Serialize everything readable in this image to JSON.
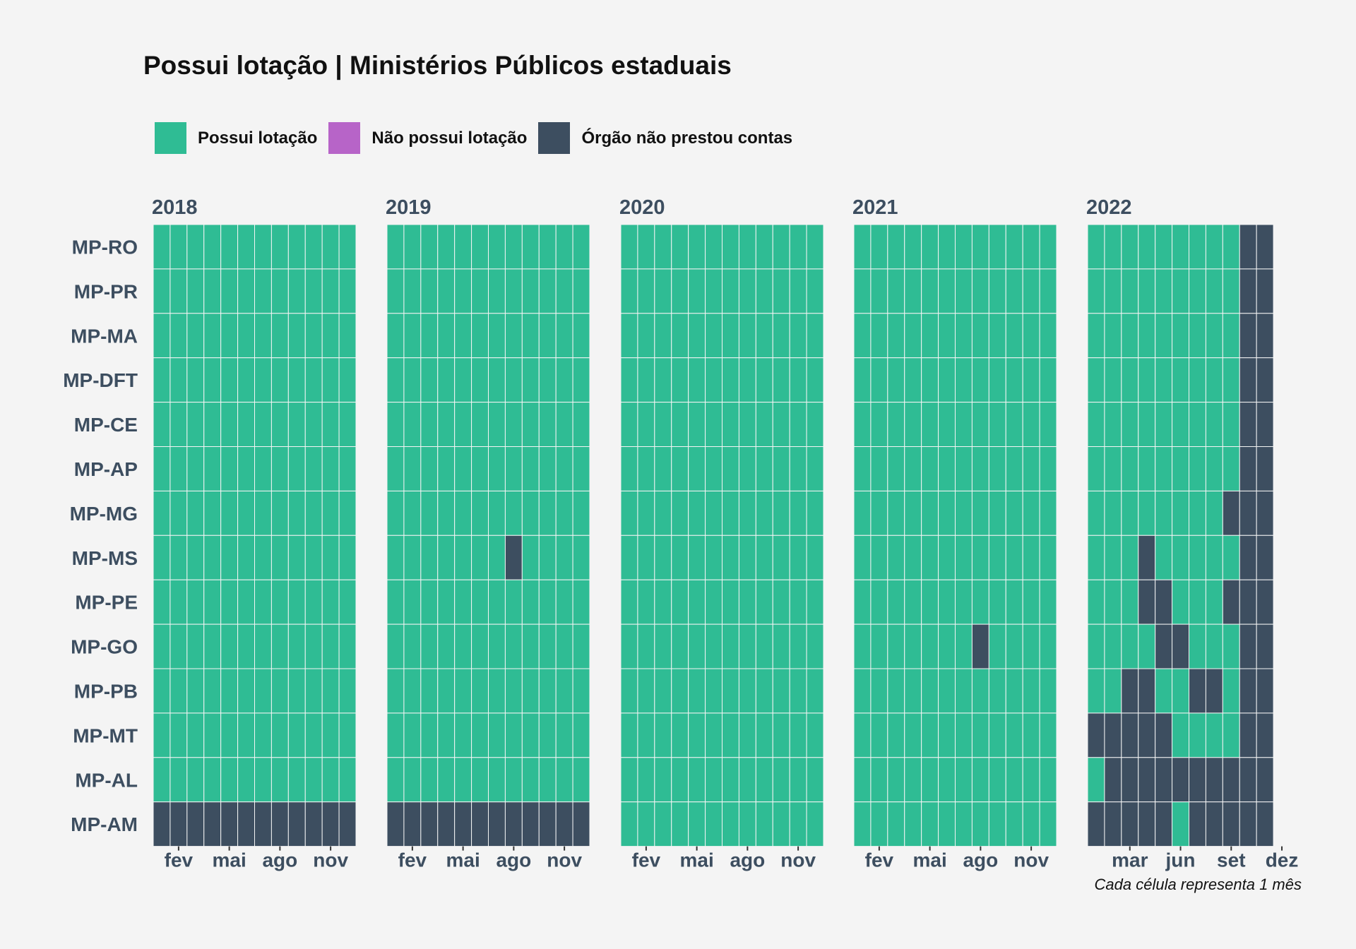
{
  "colors": {
    "background": "#f4f4f4",
    "possui": "#2fbc94",
    "nao_possui": "#b764c8",
    "nao_prestou": "#3d4e60",
    "axis_text": "#3d4e60"
  },
  "legend": {
    "items": [
      {
        "label": "Possui lotação",
        "color": "#2fbc94"
      },
      {
        "label": "Não possui lotação",
        "color": "#b764c8"
      },
      {
        "label": "Órgão não prestou contas",
        "color": "#3d4e60"
      }
    ]
  },
  "chart_data": {
    "type": "heatmap",
    "title": "Possui lotação | Ministérios Públicos estaduais",
    "caption": "Cada célula representa 1 mês",
    "legend_position": "top-left",
    "grid": false,
    "status_codes": {
      "1": "Possui lotação",
      "2": "Não possui lotação",
      "0": "Órgão não prestou contas"
    },
    "orgaos": [
      "MP-RO",
      "MP-PR",
      "MP-MA",
      "MP-DFT",
      "MP-CE",
      "MP-AP",
      "MP-MG",
      "MP-MS",
      "MP-PE",
      "MP-GO",
      "MP-PB",
      "MP-MT",
      "MP-AL",
      "MP-AM"
    ],
    "years": [
      {
        "year": "2018",
        "months": 12,
        "tick_labels": [
          {
            "month": 2,
            "label": "fev"
          },
          {
            "month": 5,
            "label": "mai"
          },
          {
            "month": 8,
            "label": "ago"
          },
          {
            "month": 11,
            "label": "nov"
          }
        ],
        "rows": [
          "111111111111",
          "111111111111",
          "111111111111",
          "111111111111",
          "111111111111",
          "111111111111",
          "111111111111",
          "111111111111",
          "111111111111",
          "111111111111",
          "111111111111",
          "111111111111",
          "111111111111",
          "000000000000"
        ]
      },
      {
        "year": "2019",
        "months": 12,
        "tick_labels": [
          {
            "month": 2,
            "label": "fev"
          },
          {
            "month": 5,
            "label": "mai"
          },
          {
            "month": 8,
            "label": "ago"
          },
          {
            "month": 11,
            "label": "nov"
          }
        ],
        "rows": [
          "111111111111",
          "111111111111",
          "111111111111",
          "111111111111",
          "111111111111",
          "111111111111",
          "111111111111",
          "111111101111",
          "111111111111",
          "111111111111",
          "111111111111",
          "111111111111",
          "111111111111",
          "000000000000"
        ]
      },
      {
        "year": "2020",
        "months": 12,
        "tick_labels": [
          {
            "month": 2,
            "label": "fev"
          },
          {
            "month": 5,
            "label": "mai"
          },
          {
            "month": 8,
            "label": "ago"
          },
          {
            "month": 11,
            "label": "nov"
          }
        ],
        "rows": [
          "111111111111",
          "111111111111",
          "111111111111",
          "111111111111",
          "111111111111",
          "111111111111",
          "111111111111",
          "111111111111",
          "111111111111",
          "111111111111",
          "111111111111",
          "111111111111",
          "111111111111",
          "111111111111"
        ]
      },
      {
        "year": "2021",
        "months": 12,
        "tick_labels": [
          {
            "month": 2,
            "label": "fev"
          },
          {
            "month": 5,
            "label": "mai"
          },
          {
            "month": 8,
            "label": "ago"
          },
          {
            "month": 11,
            "label": "nov"
          }
        ],
        "rows": [
          "111111111111",
          "111111111111",
          "111111111111",
          "111111111111",
          "111111111111",
          "111111111111",
          "111111111111",
          "111111111111",
          "111111111111",
          "111111101111",
          "111111111111",
          "111111111111",
          "111111111111",
          "111111111111"
        ]
      },
      {
        "year": "2022",
        "months": 11,
        "tick_labels": [
          {
            "month": 3,
            "label": "mar"
          },
          {
            "month": 6,
            "label": "jun"
          },
          {
            "month": 9,
            "label": "set"
          },
          {
            "month": 12,
            "label": "dez"
          }
        ],
        "rows": [
          "11111111100",
          "11111111100",
          "11111111100",
          "11111111100",
          "11111111100",
          "11111111100",
          "11111111000",
          "11101111100",
          "11100111000",
          "11110011100",
          "11001100100",
          "00000111100",
          "10000000000",
          "00000100000"
        ]
      }
    ]
  }
}
